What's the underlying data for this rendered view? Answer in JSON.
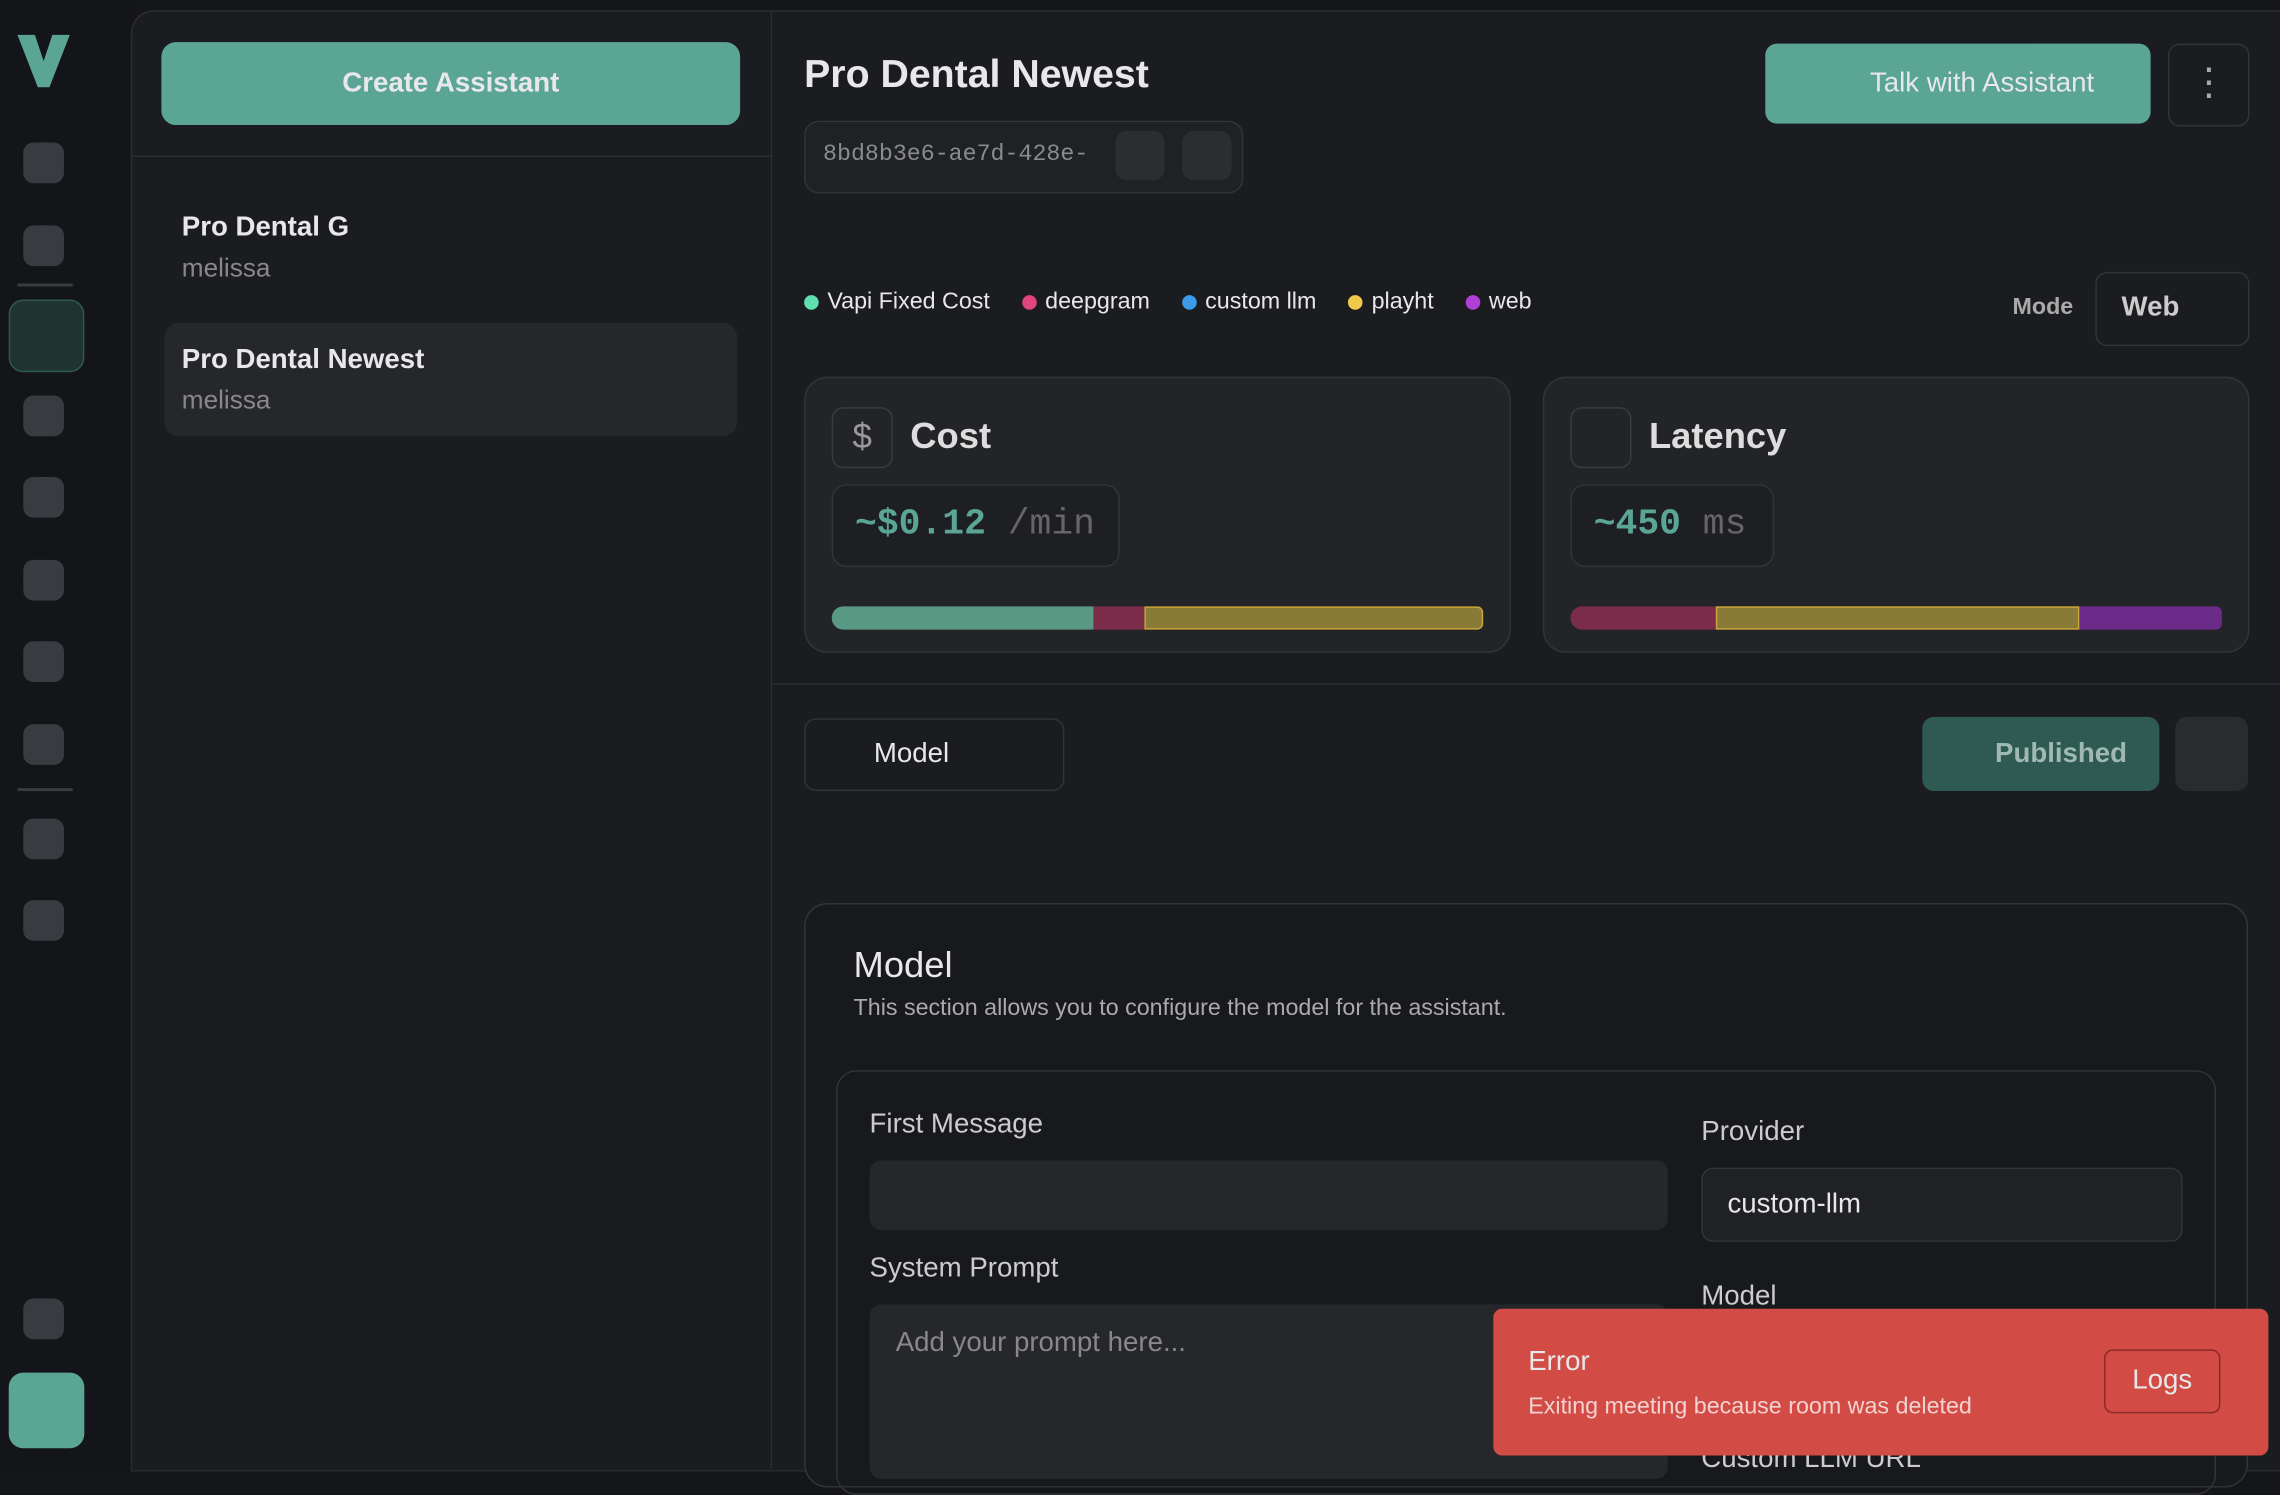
{
  "sidebar": {
    "create_button": "Create Assistant",
    "assistants": [
      {
        "name": "Pro Dental G",
        "owner": "melissa"
      },
      {
        "name": "Pro Dental Newest",
        "owner": "melissa"
      }
    ]
  },
  "header": {
    "title": "Pro Dental Newest",
    "id": "8bd8b3e6-ae7d-428e-",
    "talk_button": "Talk with Assistant"
  },
  "legend": [
    {
      "name": "Vapi Fixed Cost",
      "color": "#5ee0b0"
    },
    {
      "name": "deepgram",
      "color": "#e0457b"
    },
    {
      "name": "custom llm",
      "color": "#3b9be8"
    },
    {
      "name": "playht",
      "color": "#f0c94a"
    },
    {
      "name": "web",
      "color": "#b03fd6"
    }
  ],
  "mode": {
    "label": "Mode",
    "value": "Web"
  },
  "cost": {
    "title": "Cost",
    "value": "~$0.12",
    "unit": "/min"
  },
  "latency": {
    "title": "Latency",
    "value": "~450",
    "unit": "ms"
  },
  "toolbar": {
    "tab": "Model",
    "published": "Published"
  },
  "model_section": {
    "title": "Model",
    "description": "This section allows you to configure the model for the assistant.",
    "first_message": "First Message",
    "system_prompt": "System Prompt",
    "prompt_placeholder": "Add your prompt here...",
    "provider_label": "Provider",
    "provider_value": "custom-llm",
    "model_label": "Model",
    "custom_url": "Custom LLM URL"
  },
  "toast": {
    "title": "Error",
    "message": "Exiting meeting because room was deleted",
    "button": "Logs"
  }
}
